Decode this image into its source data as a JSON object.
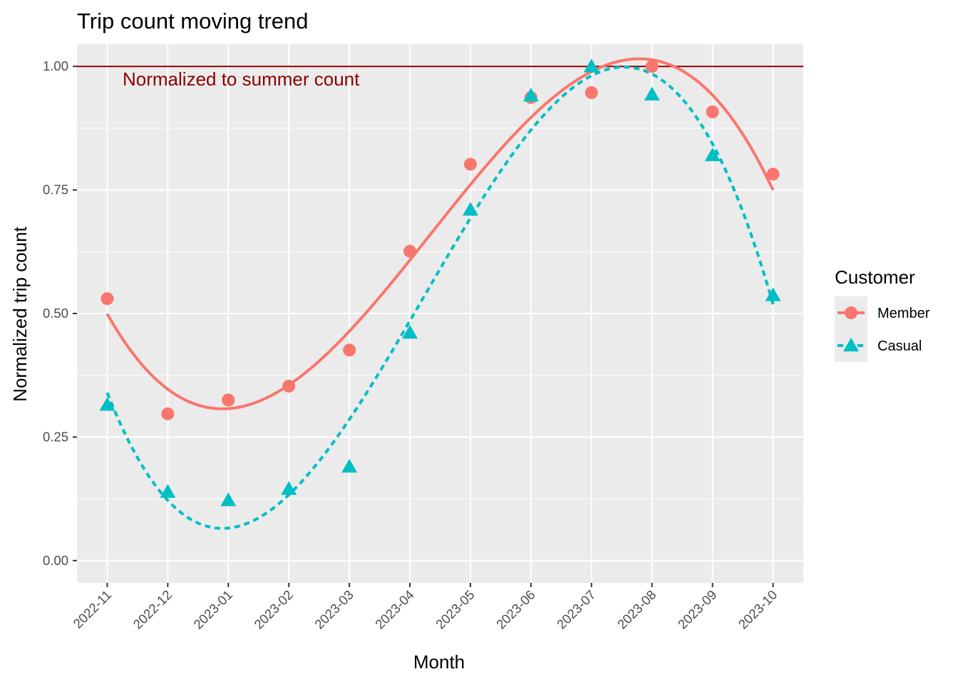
{
  "chart_data": {
    "type": "scatter",
    "title": "Trip count moving trend",
    "xlabel": "Month",
    "ylabel": "Normalized trip count",
    "categories": [
      "2022-11",
      "2022-12",
      "2023-01",
      "2023-02",
      "2023-03",
      "2023-04",
      "2023-05",
      "2023-06",
      "2023-07",
      "2023-08",
      "2023-09",
      "2023-10"
    ],
    "ylim": [
      -0.045,
      1.045
    ],
    "yticks": [
      0.0,
      0.25,
      0.5,
      0.75,
      1.0
    ],
    "ytick_labels": [
      "0.00",
      "0.25",
      "0.50",
      "0.75",
      "1.00"
    ],
    "grid": true,
    "legend": {
      "title": "Customer",
      "position": "right"
    },
    "series": [
      {
        "name": "Member",
        "color": "#F8766D",
        "marker": "circle",
        "line_style": "solid",
        "values": [
          0.53,
          0.297,
          0.325,
          0.353,
          0.426,
          0.626,
          0.802,
          0.937,
          0.947,
          1.0,
          0.908,
          0.782
        ]
      },
      {
        "name": "Casual",
        "color": "#00BFC4",
        "marker": "triangle",
        "line_style": "dashed",
        "values": [
          0.315,
          0.139,
          0.122,
          0.145,
          0.19,
          0.461,
          0.71,
          0.941,
          1.0,
          0.943,
          0.82,
          0.537
        ]
      }
    ],
    "reference_line": {
      "y": 1.0,
      "color": "#8B0000",
      "label": "Normalized to summer count"
    }
  }
}
